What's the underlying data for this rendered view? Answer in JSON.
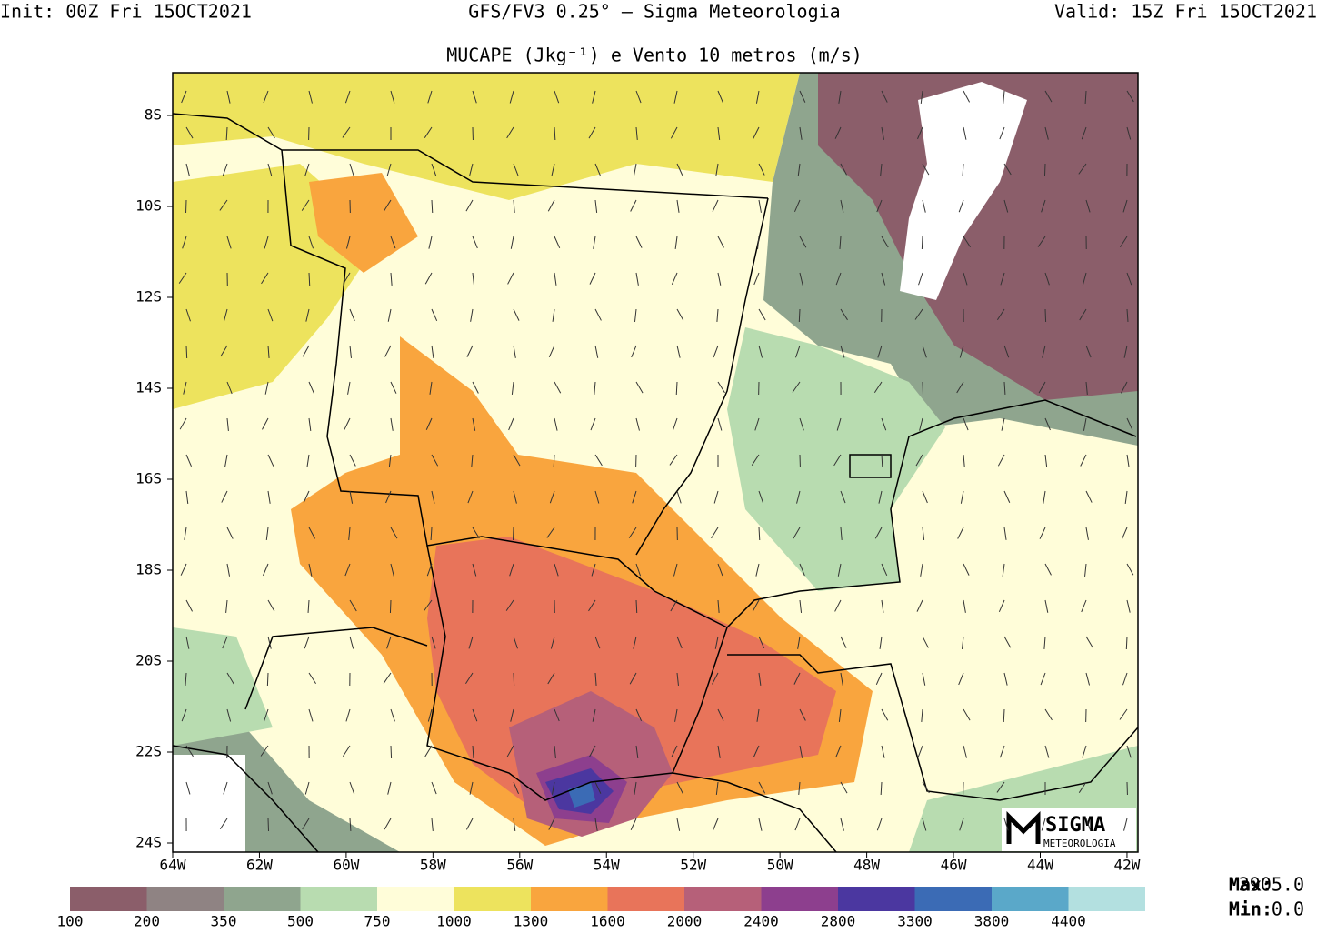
{
  "header": {
    "init": "Init: 00Z Fri 15OCT2021",
    "model": "GFS/FV3 0.25° — Sigma Meteorologia",
    "valid": "Valid: 15Z Fri 15OCT2021",
    "title": "MUCAPE (Jkg⁻¹) e Vento 10 metros (m/s)"
  },
  "axes": {
    "lat_labels": [
      "8S",
      "10S",
      "12S",
      "14S",
      "16S",
      "18S",
      "20S",
      "22S",
      "24S"
    ],
    "lon_labels": [
      "64W",
      "62W",
      "60W",
      "58W",
      "56W",
      "54W",
      "52W",
      "50W",
      "48W",
      "46W",
      "44W",
      "42W"
    ]
  },
  "colorbar": {
    "levels": [
      100,
      200,
      350,
      500,
      750,
      1000,
      1300,
      1600,
      2000,
      2400,
      2800,
      3300,
      3800,
      4400
    ],
    "colors": [
      "#8b5e6a",
      "#8f8383",
      "#8fa58e",
      "#b8dcb0",
      "#fffdd9",
      "#ede35d",
      "#f9a53e",
      "#e8745a",
      "#b66079",
      "#8d3f8e",
      "#4b37a0",
      "#3b6bb5",
      "#5aa8c9",
      "#b3e0e0"
    ]
  },
  "stats": {
    "max_label": "Max:",
    "max_value": "3905.0",
    "min_label": "Min:",
    "min_value": "0.0"
  },
  "logo": {
    "name": "SIGMA",
    "sub": "METEOROLOGIA"
  }
}
